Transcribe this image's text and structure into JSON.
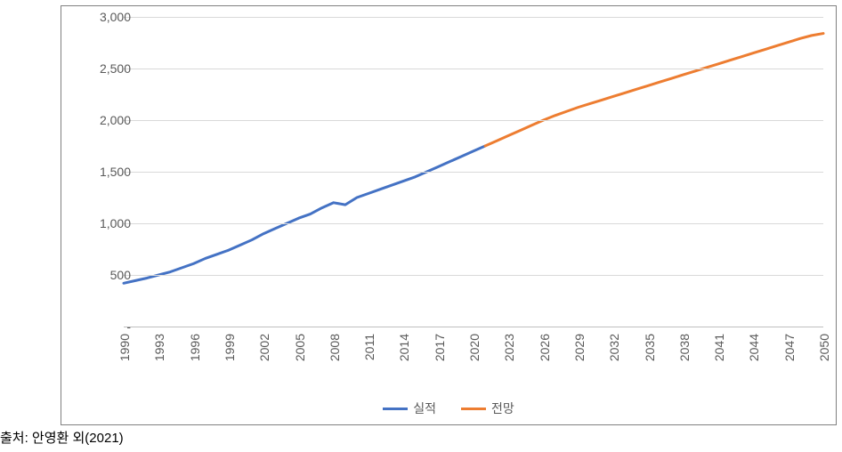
{
  "chart": {
    "type": "line",
    "background_color": "#ffffff",
    "border_color": "#808080",
    "grid_color": "#d9d9d9",
    "axis_line_color": "#bfbfbf",
    "tick_label_color": "#595959",
    "tick_label_fontsize": 14,
    "line_width": 3,
    "ylim": [
      0,
      3000
    ],
    "ytick_step": 500,
    "yticks": [
      {
        "value": 0,
        "label": "-"
      },
      {
        "value": 500,
        "label": "500"
      },
      {
        "value": 1000,
        "label": "1,000"
      },
      {
        "value": 1500,
        "label": "1,500"
      },
      {
        "value": 2000,
        "label": "2,000"
      },
      {
        "value": 2500,
        "label": "2,500"
      },
      {
        "value": 3000,
        "label": "3,000"
      }
    ],
    "x_years_all": [
      1990,
      1991,
      1992,
      1993,
      1994,
      1995,
      1996,
      1997,
      1998,
      1999,
      2000,
      2001,
      2002,
      2003,
      2004,
      2005,
      2006,
      2007,
      2008,
      2009,
      2010,
      2011,
      2012,
      2013,
      2014,
      2015,
      2016,
      2017,
      2018,
      2019,
      2020,
      2021,
      2022,
      2023,
      2024,
      2025,
      2026,
      2027,
      2028,
      2029,
      2030,
      2031,
      2032,
      2033,
      2034,
      2035,
      2036,
      2037,
      2038,
      2039,
      2040,
      2041,
      2042,
      2043,
      2044,
      2045,
      2046,
      2047,
      2048,
      2049,
      2050
    ],
    "xtick_years": [
      1990,
      1993,
      1996,
      1999,
      2002,
      2005,
      2008,
      2011,
      2014,
      2017,
      2020,
      2023,
      2026,
      2029,
      2032,
      2035,
      2038,
      2041,
      2044,
      2047,
      2050
    ],
    "x_label_rotation_deg": -90,
    "series": [
      {
        "name": "실적",
        "color": "#4472c4",
        "years": [
          1990,
          1991,
          1992,
          1993,
          1994,
          1995,
          1996,
          1997,
          1998,
          1999,
          2000,
          2001,
          2002,
          2003,
          2004,
          2005,
          2006,
          2007,
          2008,
          2009,
          2010,
          2011,
          2012,
          2013,
          2014,
          2015,
          2016,
          2017,
          2018,
          2019,
          2020,
          2021
        ],
        "values": [
          420,
          445,
          470,
          500,
          530,
          570,
          610,
          660,
          700,
          740,
          790,
          840,
          900,
          950,
          1000,
          1050,
          1090,
          1150,
          1200,
          1180,
          1250,
          1290,
          1330,
          1370,
          1410,
          1450,
          1500,
          1550,
          1600,
          1650,
          1700,
          1750
        ]
      },
      {
        "name": "전망",
        "color": "#ed7d31",
        "years": [
          2021,
          2022,
          2023,
          2024,
          2025,
          2026,
          2027,
          2028,
          2029,
          2030,
          2031,
          2032,
          2033,
          2034,
          2035,
          2036,
          2037,
          2038,
          2039,
          2040,
          2041,
          2042,
          2043,
          2044,
          2045,
          2046,
          2047,
          2048,
          2049,
          2050
        ],
        "values": [
          1750,
          1800,
          1850,
          1900,
          1950,
          2000,
          2045,
          2085,
          2125,
          2160,
          2195,
          2230,
          2265,
          2300,
          2335,
          2370,
          2405,
          2440,
          2475,
          2510,
          2545,
          2580,
          2615,
          2650,
          2685,
          2720,
          2755,
          2790,
          2820,
          2840
        ]
      }
    ],
    "legend": {
      "items": [
        {
          "label": "실적",
          "color": "#4472c4"
        },
        {
          "label": "전망",
          "color": "#ed7d31"
        }
      ]
    }
  },
  "source_note": "출처: 안영환 외(2021)"
}
